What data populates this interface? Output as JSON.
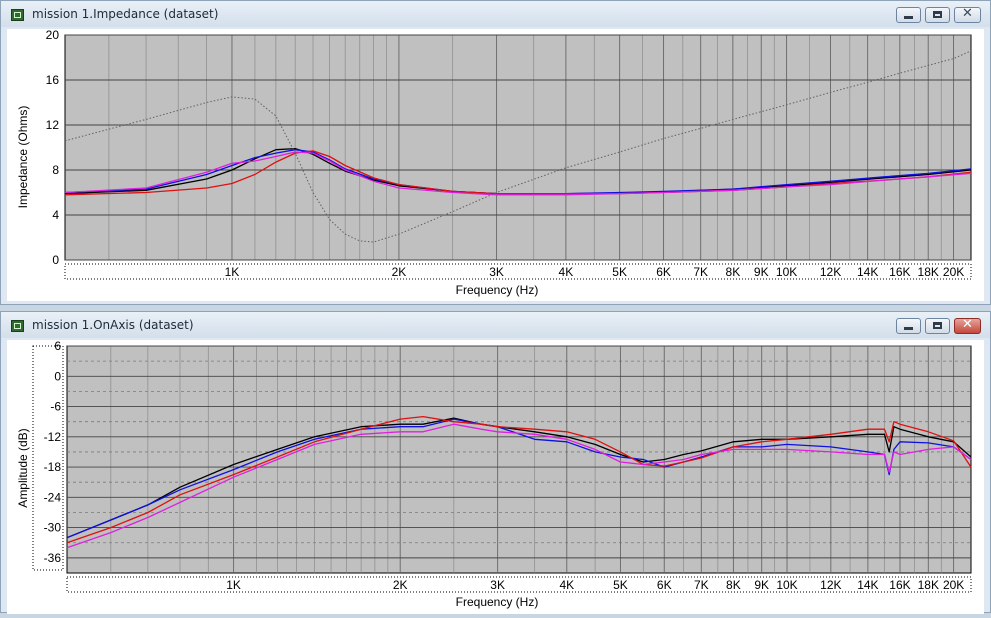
{
  "windows": [
    {
      "title": "mission 1.Impedance (dataset)",
      "controls": {
        "minimize": "minimize",
        "maximize": "maximize",
        "close": "✕"
      },
      "close_active": false
    },
    {
      "title": "mission 1.OnAxis (dataset)",
      "controls": {
        "minimize": "minimize",
        "maximize": "maximize",
        "close": "✕"
      },
      "close_active": true
    }
  ],
  "chart_data": [
    {
      "type": "line",
      "title": "",
      "xlabel": "Frequency (Hz)",
      "ylabel": "Impedance (Ohms)",
      "xscale": "log",
      "xlim": [
        500,
        21500
      ],
      "ylim": [
        0,
        20
      ],
      "yticks": [
        0,
        4,
        8,
        12,
        16,
        20
      ],
      "xtick_labels": [
        {
          "v": 1000,
          "t": "1K"
        },
        {
          "v": 2000,
          "t": "2K"
        },
        {
          "v": 3000,
          "t": "3K"
        },
        {
          "v": 4000,
          "t": "4K"
        },
        {
          "v": 5000,
          "t": "5K"
        },
        {
          "v": 6000,
          "t": "6K"
        },
        {
          "v": 7000,
          "t": "7K"
        },
        {
          "v": 8000,
          "t": "8K"
        },
        {
          "v": 9000,
          "t": "9K"
        },
        {
          "v": 10000,
          "t": "10K"
        },
        {
          "v": 12000,
          "t": "12K"
        },
        {
          "v": 14000,
          "t": "14K"
        },
        {
          "v": 16000,
          "t": "16K"
        },
        {
          "v": 18000,
          "t": "18K"
        },
        {
          "v": 20000,
          "t": "20K"
        }
      ],
      "minor_grid": [
        600,
        700,
        800,
        900,
        1100,
        1200,
        1300,
        1400,
        1500,
        1600,
        1700,
        1800,
        1900,
        2500,
        3500,
        4500,
        5500,
        6500,
        7500,
        8500,
        9500,
        11000,
        13000,
        15000,
        17000,
        19000
      ],
      "grid": true,
      "series": [
        {
          "color": "#000000",
          "dash": false,
          "x": [
            500,
            700,
            900,
            1000,
            1100,
            1200,
            1300,
            1400,
            1500,
            1600,
            1800,
            2000,
            2500,
            3000,
            4000,
            5000,
            6000,
            8000,
            10000,
            12000,
            15000,
            18000,
            21500
          ],
          "y": [
            5.9,
            6.2,
            7.2,
            8.0,
            9.0,
            9.8,
            9.9,
            9.4,
            8.6,
            7.9,
            7.1,
            6.6,
            6.1,
            5.9,
            5.9,
            5.95,
            6.05,
            6.3,
            6.6,
            6.9,
            7.3,
            7.6,
            8.0
          ]
        },
        {
          "color": "#1010e0",
          "dash": false,
          "x": [
            500,
            700,
            900,
            1000,
            1100,
            1200,
            1300,
            1400,
            1500,
            1600,
            1800,
            2000,
            2500,
            3000,
            4000,
            5000,
            6000,
            8000,
            10000,
            12000,
            15000,
            18000,
            21500
          ],
          "y": [
            6.0,
            6.3,
            7.6,
            8.4,
            9.1,
            9.5,
            9.8,
            9.6,
            8.9,
            8.1,
            7.2,
            6.7,
            6.1,
            5.9,
            5.9,
            6.0,
            6.1,
            6.3,
            6.7,
            7.0,
            7.4,
            7.7,
            8.1
          ]
        },
        {
          "color": "#e01010",
          "dash": false,
          "x": [
            500,
            700,
            900,
            1000,
            1100,
            1200,
            1300,
            1400,
            1500,
            1600,
            1800,
            2000,
            2500,
            3000,
            4000,
            5000,
            6000,
            8000,
            10000,
            12000,
            15000,
            18000,
            21500
          ],
          "y": [
            5.8,
            6.0,
            6.4,
            6.8,
            7.6,
            8.7,
            9.5,
            9.7,
            9.2,
            8.4,
            7.3,
            6.7,
            6.1,
            5.9,
            5.9,
            5.9,
            6.0,
            6.2,
            6.5,
            6.8,
            7.1,
            7.4,
            7.8
          ]
        },
        {
          "color": "#e020e0",
          "dash": false,
          "x": [
            500,
            700,
            900,
            1000,
            1100,
            1200,
            1300,
            1400,
            1500,
            1600,
            1800,
            2000,
            2500,
            3000,
            4000,
            5000,
            6000,
            8000,
            10000,
            12000,
            15000,
            18000,
            21500
          ],
          "y": [
            6.0,
            6.4,
            7.8,
            8.6,
            8.8,
            9.2,
            9.6,
            9.5,
            8.8,
            8.0,
            7.0,
            6.4,
            6.0,
            5.8,
            5.8,
            5.9,
            6.0,
            6.2,
            6.5,
            6.7,
            7.1,
            7.4,
            7.7
          ]
        },
        {
          "color": "#606060",
          "dash": true,
          "x": [
            500,
            700,
            900,
            1000,
            1100,
            1200,
            1300,
            1400,
            1500,
            1600,
            1700,
            1800,
            2000,
            2500,
            3000,
            4000,
            5000,
            6000,
            7000,
            8000,
            10000,
            12000,
            14000,
            16000,
            18000,
            20000,
            21500
          ],
          "y": [
            10.6,
            12.5,
            14.0,
            14.5,
            14.3,
            12.8,
            9.5,
            6.0,
            3.6,
            2.3,
            1.7,
            1.6,
            2.3,
            4.3,
            6.0,
            8.2,
            9.6,
            10.8,
            11.7,
            12.5,
            13.8,
            14.9,
            15.8,
            16.6,
            17.3,
            17.9,
            18.6
          ]
        }
      ]
    },
    {
      "type": "line",
      "title": "",
      "xlabel": "Frequency (Hz)",
      "ylabel": "Amplitude (dB)",
      "xscale": "log",
      "xlim": [
        500,
        21500
      ],
      "ylim": [
        -39,
        6
      ],
      "yticks": [
        6,
        0,
        -6,
        -12,
        -18,
        -24,
        -30,
        -36
      ],
      "xtick_labels": [
        {
          "v": 1000,
          "t": "1K"
        },
        {
          "v": 2000,
          "t": "2K"
        },
        {
          "v": 3000,
          "t": "3K"
        },
        {
          "v": 4000,
          "t": "4K"
        },
        {
          "v": 5000,
          "t": "5K"
        },
        {
          "v": 6000,
          "t": "6K"
        },
        {
          "v": 7000,
          "t": "7K"
        },
        {
          "v": 8000,
          "t": "8K"
        },
        {
          "v": 9000,
          "t": "9K"
        },
        {
          "v": 10000,
          "t": "10K"
        },
        {
          "v": 12000,
          "t": "12K"
        },
        {
          "v": 14000,
          "t": "14K"
        },
        {
          "v": 16000,
          "t": "16K"
        },
        {
          "v": 18000,
          "t": "18K"
        },
        {
          "v": 20000,
          "t": "20K"
        }
      ],
      "minor_grid": [
        600,
        700,
        800,
        900,
        1100,
        1200,
        1300,
        1400,
        1500,
        1600,
        1700,
        1800,
        1900,
        2500,
        3500,
        4500,
        5500,
        6500,
        7500,
        8500,
        9500,
        11000,
        13000,
        15000,
        17000,
        19000
      ],
      "grid": true,
      "series": [
        {
          "color": "#000000",
          "dash": false,
          "x": [
            500,
            600,
            700,
            800,
            1000,
            1200,
            1400,
            1700,
            2000,
            2200,
            2500,
            2800,
            3000,
            3500,
            4000,
            4500,
            5000,
            5500,
            6000,
            6500,
            7000,
            8000,
            9000,
            10000,
            12000,
            14000,
            15000,
            15300,
            15600,
            16000,
            18000,
            20000,
            21500
          ],
          "y": [
            -32,
            -28.5,
            -25.5,
            -22,
            -17.5,
            -14.5,
            -12,
            -10,
            -9.5,
            -9.5,
            -8.3,
            -9.5,
            -10,
            -11,
            -12,
            -13.5,
            -15.5,
            -17,
            -16.5,
            -15.5,
            -14.8,
            -13,
            -12.5,
            -12.5,
            -12,
            -11.5,
            -11.5,
            -15,
            -10,
            -10.5,
            -12,
            -13,
            -16
          ]
        },
        {
          "color": "#1010e0",
          "dash": false,
          "x": [
            500,
            600,
            700,
            800,
            1000,
            1200,
            1400,
            1700,
            2000,
            2200,
            2500,
            2800,
            3000,
            3500,
            4000,
            4500,
            5000,
            5500,
            6000,
            6500,
            7000,
            8000,
            9000,
            10000,
            12000,
            14000,
            15000,
            15300,
            15600,
            16000,
            18000,
            20000,
            21500
          ],
          "y": [
            -32,
            -28.5,
            -25.5,
            -22.5,
            -18.5,
            -15,
            -12.5,
            -10.5,
            -10,
            -10,
            -8.5,
            -9.5,
            -10,
            -12.5,
            -13,
            -15,
            -16,
            -16.5,
            -18,
            -17,
            -16,
            -14,
            -14,
            -13.5,
            -14,
            -15,
            -15.5,
            -19.5,
            -14.5,
            -13,
            -13.2,
            -14,
            -16.5
          ]
        },
        {
          "color": "#e01010",
          "dash": false,
          "x": [
            500,
            600,
            700,
            800,
            1000,
            1200,
            1400,
            1700,
            2000,
            2200,
            2500,
            2800,
            3000,
            3500,
            4000,
            4500,
            5000,
            5500,
            6000,
            6500,
            7000,
            8000,
            9000,
            10000,
            12000,
            14000,
            15000,
            15300,
            15600,
            16000,
            18000,
            20000,
            21500
          ],
          "y": [
            -33,
            -30,
            -27,
            -23.5,
            -19.5,
            -16,
            -13,
            -10.5,
            -8.5,
            -8,
            -9,
            -9.5,
            -10,
            -10.5,
            -11,
            -12.5,
            -15,
            -17.5,
            -17.8,
            -17,
            -16.2,
            -14,
            -13,
            -12.5,
            -11.5,
            -10.5,
            -10.5,
            -13,
            -9,
            -9.5,
            -11,
            -12.8,
            -18
          ]
        },
        {
          "color": "#e020e0",
          "dash": false,
          "x": [
            500,
            600,
            700,
            800,
            1000,
            1200,
            1400,
            1700,
            2000,
            2200,
            2500,
            2800,
            3000,
            3500,
            4000,
            4500,
            5000,
            5500,
            6000,
            6500,
            7000,
            8000,
            9000,
            10000,
            12000,
            14000,
            15000,
            15300,
            15600,
            16000,
            18000,
            20000,
            21500
          ],
          "y": [
            -34,
            -31,
            -28,
            -25,
            -20,
            -16.5,
            -13.5,
            -11.5,
            -11,
            -11,
            -9.5,
            -10.5,
            -11,
            -11.5,
            -12.5,
            -14.5,
            -17,
            -17.5,
            -17,
            -16.5,
            -15.5,
            -14.5,
            -14.5,
            -14.5,
            -15,
            -15.5,
            -15.5,
            -19,
            -15,
            -15.5,
            -14.5,
            -14,
            -16.5
          ]
        }
      ]
    }
  ]
}
